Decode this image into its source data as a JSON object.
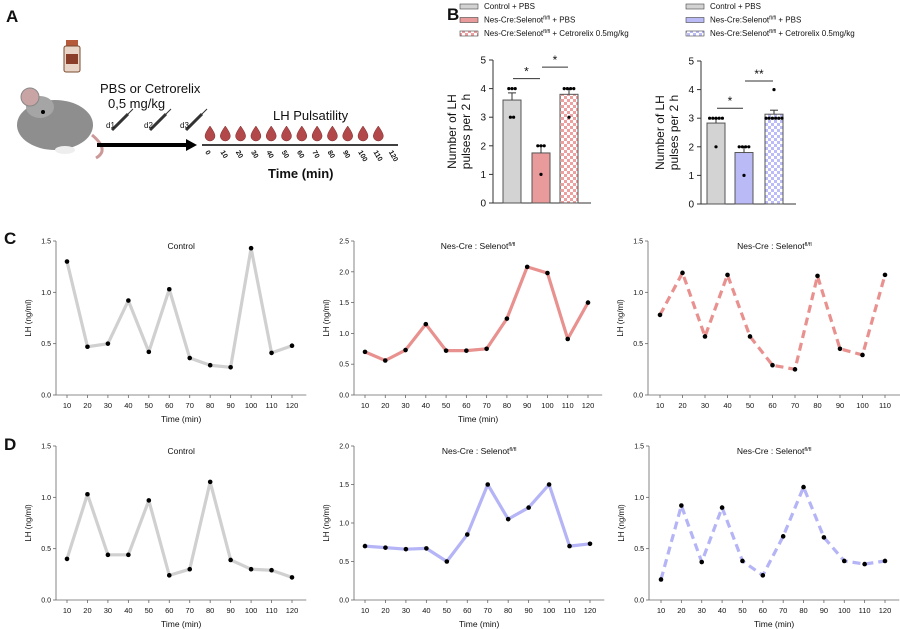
{
  "panel_labels": [
    "A",
    "B",
    "C",
    "D"
  ],
  "panel_a": {
    "treatment_line1": "PBS or Cetrorelix",
    "treatment_line2": "0,5 mg/kg",
    "injection_days": [
      "d1",
      "d2",
      "d3"
    ],
    "title": "LH Pulsatility",
    "time_ticks": [
      "0",
      "10",
      "20",
      "30",
      "40",
      "50",
      "60",
      "70",
      "80",
      "90",
      "100",
      "110",
      "120"
    ],
    "xlabel": "Time (min)"
  },
  "colors": {
    "control": "#d0d0d0",
    "red": "#e8918f",
    "blue": "#b4b4f6",
    "point": "#000000"
  },
  "chart_data": [
    {
      "id": "B-left",
      "type": "bar",
      "legend": [
        "Control + PBS",
        "Nes-Cre:Selenot^fl/fl + PBS",
        "Nes-Cre:Selenot^fl/fl + Cetrorelix 0.5mg/kg"
      ],
      "ylabel": "Number of LH pulses per 2 h",
      "ylim": [
        0,
        5
      ],
      "yticks": [
        "0",
        "1",
        "2",
        "3",
        "4",
        "5"
      ],
      "bars": [
        {
          "mean": 3.6,
          "err": 0.25,
          "points": [
            4,
            4,
            4,
            3,
            3
          ],
          "fill": "control"
        },
        {
          "mean": 1.75,
          "err": 0.25,
          "points": [
            2,
            2,
            2,
            1
          ],
          "fill": "red"
        },
        {
          "mean": 3.8,
          "err": 0.2,
          "points": [
            4,
            4,
            4,
            4,
            3
          ],
          "fill": "red-checker"
        }
      ],
      "significance": [
        {
          "from": 0,
          "to": 1,
          "label": "*",
          "y": 4.35
        },
        {
          "from": 1,
          "to": 2,
          "label": "*",
          "y": 4.75
        }
      ]
    },
    {
      "id": "B-right",
      "type": "bar",
      "legend": [
        "Control + PBS",
        "Nes-Cre:Selenot^fl/fl + PBS",
        "Nes-Cre:Selenot^fl/fl + Cetrorelix 0.5mg/kg"
      ],
      "ylabel": "Number of LH pulses per 2 h",
      "ylim": [
        0,
        5
      ],
      "yticks": [
        "0",
        "1",
        "2",
        "3",
        "4",
        "5"
      ],
      "bars": [
        {
          "mean": 2.83,
          "err": 0.15,
          "points": [
            3,
            3,
            3,
            3,
            3,
            2
          ],
          "fill": "control"
        },
        {
          "mean": 1.8,
          "err": 0.2,
          "points": [
            2,
            2,
            2,
            2,
            1
          ],
          "fill": "blue"
        },
        {
          "mean": 3.14,
          "err": 0.14,
          "points": [
            3,
            3,
            3,
            3,
            3,
            3,
            4
          ],
          "fill": "blue-checker"
        }
      ],
      "significance": [
        {
          "from": 0,
          "to": 1,
          "label": "*",
          "y": 3.35
        },
        {
          "from": 1,
          "to": 2,
          "label": "**",
          "y": 4.3
        }
      ]
    },
    {
      "id": "C1",
      "type": "line",
      "title": "Control",
      "title_sup": "",
      "ylabel": "LH (ng/ml)",
      "xlabel": "Time (min)",
      "ylim": [
        0,
        1.5
      ],
      "yticks": [
        "0.0",
        "0.5",
        "1.0",
        "1.5"
      ],
      "color": "control",
      "dashed": false,
      "x": [
        10,
        20,
        30,
        40,
        50,
        60,
        70,
        80,
        90,
        100,
        110,
        120
      ],
      "y": [
        1.3,
        0.47,
        0.5,
        0.92,
        0.42,
        1.03,
        0.36,
        0.29,
        0.27,
        1.43,
        0.41,
        0.48
      ]
    },
    {
      "id": "C2",
      "type": "line",
      "title": "Nes-Cre : Selenot",
      "title_sup": "fl/fl",
      "ylabel": "LH (ng/ml)",
      "xlabel": "Time (min)",
      "ylim": [
        0,
        2.5
      ],
      "yticks": [
        "0.0",
        "0.5",
        "1.0",
        "1.5",
        "2.0",
        "2.5"
      ],
      "color": "red",
      "dashed": false,
      "x": [
        10,
        20,
        30,
        40,
        50,
        60,
        70,
        80,
        90,
        100,
        110,
        120
      ],
      "y": [
        0.7,
        0.56,
        0.73,
        1.15,
        0.72,
        0.72,
        0.75,
        1.24,
        2.08,
        1.98,
        0.91,
        1.5
      ]
    },
    {
      "id": "C3",
      "type": "line",
      "title": "Nes-Cre : Selenot",
      "title_sup": "fl/fl",
      "ylabel": "LH (ng/ml)",
      "xlabel": "",
      "ylim": [
        0,
        1.5
      ],
      "yticks": [
        "0.0",
        "0.5",
        "1.0",
        "1.5"
      ],
      "color": "red",
      "dashed": true,
      "x": [
        10,
        20,
        30,
        40,
        50,
        60,
        70,
        80,
        90,
        100,
        110
      ],
      "y": [
        0.78,
        1.19,
        0.57,
        1.17,
        0.57,
        0.29,
        0.25,
        1.16,
        0.45,
        0.39,
        1.17
      ]
    },
    {
      "id": "D1",
      "type": "line",
      "title": "Control",
      "title_sup": "",
      "ylabel": "LH (ng/ml)",
      "xlabel": "Time (min)",
      "ylim": [
        0,
        1.5
      ],
      "yticks": [
        "0.0",
        "0.5",
        "1.0",
        "1.5"
      ],
      "color": "control",
      "dashed": false,
      "x": [
        10,
        20,
        30,
        40,
        50,
        60,
        70,
        80,
        90,
        100,
        110,
        120
      ],
      "y": [
        0.4,
        1.03,
        0.44,
        0.44,
        0.97,
        0.24,
        0.3,
        1.15,
        0.39,
        0.3,
        0.29,
        0.22
      ]
    },
    {
      "id": "D2",
      "type": "line",
      "title": "Nes-Cre : Selenot",
      "title_sup": "fl/fl",
      "ylabel": "LH (ng/ml)",
      "xlabel": "Time (min)",
      "ylim": [
        0,
        2.0
      ],
      "yticks": [
        "0.0",
        "0.5",
        "1.0",
        "1.5",
        "2.0"
      ],
      "color": "blue",
      "dashed": false,
      "x": [
        10,
        20,
        30,
        40,
        50,
        60,
        70,
        80,
        90,
        100,
        110,
        120
      ],
      "y": [
        0.7,
        0.68,
        0.66,
        0.67,
        0.5,
        0.85,
        1.5,
        1.05,
        1.2,
        1.5,
        0.7,
        0.73
      ]
    },
    {
      "id": "D3",
      "type": "line",
      "title": "Nes-Cre : Selenot",
      "title_sup": "fl/fl",
      "ylabel": "LH (ng/ml)",
      "xlabel": "Time (min)",
      "ylim": [
        0,
        1.5
      ],
      "yticks": [
        "0.0",
        "0.5",
        "1.0",
        "1.5"
      ],
      "color": "blue",
      "dashed": true,
      "x": [
        10,
        20,
        30,
        40,
        50,
        60,
        70,
        80,
        90,
        100,
        110,
        120
      ],
      "y": [
        0.2,
        0.92,
        0.37,
        0.9,
        0.38,
        0.24,
        0.62,
        1.1,
        0.61,
        0.38,
        0.35,
        0.38
      ]
    }
  ]
}
